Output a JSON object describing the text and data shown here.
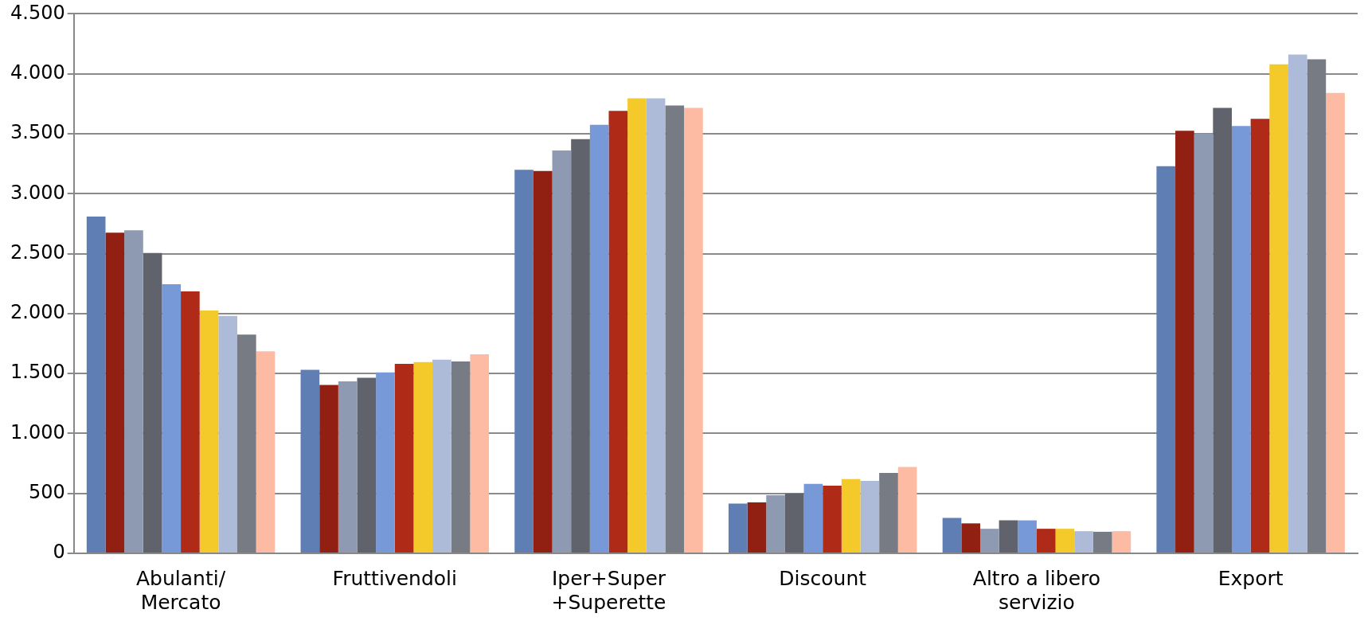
{
  "chart_data": {
    "type": "bar",
    "categories": [
      "Abulanti/\nMercato",
      "Fruttivendoli",
      "Iper+Super\n+Superette",
      "Discount",
      "Altro a libero\nservizio",
      "Export"
    ],
    "series": [
      {
        "color": "#5f7eb4",
        "values": [
          2810,
          1530,
          3200,
          415,
          295,
          3230
        ]
      },
      {
        "color": "#922012",
        "values": [
          2675,
          1405,
          3190,
          425,
          250,
          3525
        ]
      },
      {
        "color": "#8e9ab2",
        "values": [
          2695,
          1435,
          3360,
          485,
          205,
          3500
        ]
      },
      {
        "color": "#60636b",
        "values": [
          2505,
          1465,
          3455,
          500,
          275,
          3715
        ]
      },
      {
        "color": "#7799d8",
        "values": [
          2245,
          1510,
          3575,
          580,
          275,
          3565
        ]
      },
      {
        "color": "#b02a18",
        "values": [
          2185,
          1580,
          3690,
          565,
          205,
          3625
        ]
      },
      {
        "color": "#f4c92a",
        "values": [
          2025,
          1595,
          3795,
          620,
          205,
          4080
        ]
      },
      {
        "color": "#aebbd8",
        "values": [
          1980,
          1615,
          3795,
          605,
          185,
          4160
        ]
      },
      {
        "color": "#767b84",
        "values": [
          1825,
          1600,
          3735,
          670,
          180,
          4120
        ]
      },
      {
        "color": "#fdbba3",
        "values": [
          1685,
          1660,
          3715,
          720,
          185,
          3840
        ]
      }
    ],
    "ylim": [
      0,
      4500
    ],
    "yticks": [
      {
        "value": 0,
        "label": "0"
      },
      {
        "value": 500,
        "label": "500"
      },
      {
        "value": 1000,
        "label": "1.000"
      },
      {
        "value": 1500,
        "label": "1.500"
      },
      {
        "value": 2000,
        "label": "2.000"
      },
      {
        "value": 2500,
        "label": "2.500"
      },
      {
        "value": 3000,
        "label": "3.000"
      },
      {
        "value": 3500,
        "label": "3.500"
      },
      {
        "value": 4000,
        "label": "4.000"
      },
      {
        "value": 4500,
        "label": "4.500"
      }
    ],
    "grid": "y",
    "legend": false
  }
}
